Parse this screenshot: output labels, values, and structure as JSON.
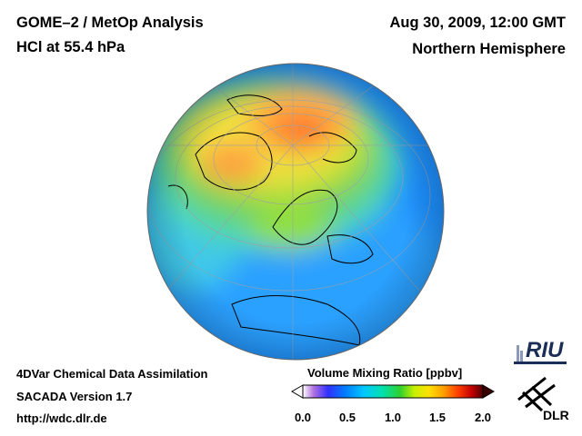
{
  "header": {
    "title_line1": "GOME–2 / MetOp Analysis",
    "title_line2": "HCl at 55.4 hPa",
    "date": "Aug 30, 2009, 12:00 GMT",
    "region": "Northern Hemisphere"
  },
  "footer": {
    "line1": "4DVar Chemical Data Assimilation",
    "line2": "SACADA Version 1.7",
    "line3": "http://wdc.dlr.de"
  },
  "colorbar": {
    "title": "Volume Mixing Ratio [ppbv]",
    "ticks": [
      "0.0",
      "0.5",
      "1.0",
      "1.5",
      "2.0"
    ],
    "min": 0.0,
    "max": 2.0,
    "colors": [
      "#ffffff",
      "#8a2be2",
      "#0000ff",
      "#00bfff",
      "#00e5c8",
      "#00d000",
      "#ffff00",
      "#ffa000",
      "#ff3000",
      "#b00000",
      "#3a0000"
    ]
  },
  "logos": {
    "riu": "RIU",
    "dlr": "DLR"
  },
  "map": {
    "projection": "orthographic",
    "hemisphere": "northern",
    "field": "HCl"
  }
}
